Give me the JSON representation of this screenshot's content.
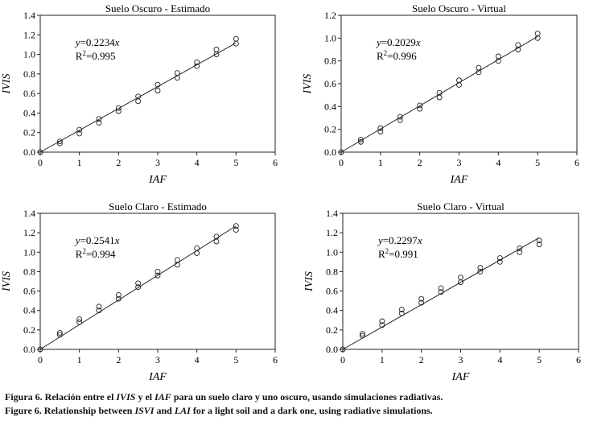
{
  "captions": {
    "spanish": {
      "prefix": "Figura 6. Relación entre el ",
      "term1": "IVIS",
      "mid": " y el ",
      "term2": "IAF",
      "suffix": " para un suelo claro y uno oscuro, usando simulaciones radiativas."
    },
    "english": {
      "prefix": "Figure 6.  Relationship between ",
      "term1": "ISVI",
      "mid": " and ",
      "term2": "LAI",
      "suffix": " for a light soil and a dark one, using radiative simulations."
    }
  },
  "chart_data": [
    {
      "type": "scatter",
      "title": "Suelo Oscuro - Estimado",
      "xlabel": "IAF",
      "ylabel": "IVIS",
      "xlim": [
        0,
        6
      ],
      "ylim": [
        0,
        1.4
      ],
      "xticks": [
        "0",
        "1",
        "2",
        "3",
        "4",
        "5",
        "6"
      ],
      "yticks": [
        "0.0",
        "0.2",
        "0.4",
        "0.6",
        "0.8",
        "1.0",
        "1.2",
        "1.4"
      ],
      "equation": "y=0.2234x",
      "r2": "=0.995",
      "slope": 0.2234,
      "fit_x": [
        0,
        5
      ],
      "points": [
        [
          0,
          0
        ],
        [
          0.5,
          0.09
        ],
        [
          0.5,
          0.11
        ],
        [
          1,
          0.19
        ],
        [
          1,
          0.23
        ],
        [
          1.5,
          0.3
        ],
        [
          1.5,
          0.34
        ],
        [
          2,
          0.42
        ],
        [
          2,
          0.45
        ],
        [
          2.5,
          0.52
        ],
        [
          2.5,
          0.57
        ],
        [
          3,
          0.63
        ],
        [
          3,
          0.69
        ],
        [
          3.5,
          0.76
        ],
        [
          3.5,
          0.81
        ],
        [
          4,
          0.88
        ],
        [
          4,
          0.92
        ],
        [
          4.5,
          1.0
        ],
        [
          4.5,
          1.05
        ],
        [
          5,
          1.11
        ],
        [
          5,
          1.16
        ]
      ]
    },
    {
      "type": "scatter",
      "title": "Suelo Oscuro - Virtual",
      "xlabel": "IAF",
      "ylabel": "IVIS",
      "xlim": [
        0,
        6
      ],
      "ylim": [
        0,
        1.2
      ],
      "xticks": [
        "0",
        "1",
        "2",
        "3",
        "4",
        "5",
        "6"
      ],
      "yticks": [
        "0.0",
        "0.2",
        "0.4",
        "0.6",
        "0.8",
        "1.0",
        "1.2"
      ],
      "equation": "y=0.2029x",
      "r2": "=0.996",
      "slope": 0.2029,
      "fit_x": [
        0,
        5
      ],
      "points": [
        [
          0,
          0
        ],
        [
          0.5,
          0.09
        ],
        [
          0.5,
          0.11
        ],
        [
          1,
          0.18
        ],
        [
          1,
          0.21
        ],
        [
          1.5,
          0.28
        ],
        [
          1.5,
          0.31
        ],
        [
          2,
          0.38
        ],
        [
          2,
          0.41
        ],
        [
          2.5,
          0.48
        ],
        [
          2.5,
          0.52
        ],
        [
          3,
          0.59
        ],
        [
          3,
          0.63
        ],
        [
          3.5,
          0.7
        ],
        [
          3.5,
          0.74
        ],
        [
          4,
          0.8
        ],
        [
          4,
          0.84
        ],
        [
          4.5,
          0.9
        ],
        [
          4.5,
          0.94
        ],
        [
          5,
          1.0
        ],
        [
          5,
          1.04
        ]
      ]
    },
    {
      "type": "scatter",
      "title": "Suelo Claro - Estimado",
      "xlabel": "IAF",
      "ylabel": "IVIS",
      "xlim": [
        0,
        6
      ],
      "ylim": [
        0,
        1.4
      ],
      "xticks": [
        "0",
        "1",
        "2",
        "3",
        "4",
        "5",
        "6"
      ],
      "yticks": [
        "0.0",
        "0.2",
        "0.4",
        "0.6",
        "0.8",
        "1.0",
        "1.2",
        "1.4"
      ],
      "equation": "y=0.2541x",
      "r2": "=0.994",
      "slope": 0.2541,
      "fit_x": [
        0,
        5
      ],
      "points": [
        [
          0,
          0
        ],
        [
          0.5,
          0.15
        ],
        [
          0.5,
          0.17
        ],
        [
          1,
          0.28
        ],
        [
          1,
          0.31
        ],
        [
          1.5,
          0.4
        ],
        [
          1.5,
          0.44
        ],
        [
          2,
          0.52
        ],
        [
          2,
          0.56
        ],
        [
          2.5,
          0.64
        ],
        [
          2.5,
          0.68
        ],
        [
          3,
          0.76
        ],
        [
          3,
          0.8
        ],
        [
          3.5,
          0.87
        ],
        [
          3.5,
          0.92
        ],
        [
          4,
          0.99
        ],
        [
          4,
          1.04
        ],
        [
          4.5,
          1.11
        ],
        [
          4.5,
          1.16
        ],
        [
          5,
          1.23
        ],
        [
          5,
          1.27
        ]
      ]
    },
    {
      "type": "scatter",
      "title": "Suelo Claro - Virtual",
      "xlabel": "IAF",
      "ylabel": "IVIS",
      "xlim": [
        0,
        6
      ],
      "ylim": [
        0,
        1.4
      ],
      "xticks": [
        "0",
        "1",
        "2",
        "3",
        "4",
        "5",
        "6"
      ],
      "yticks": [
        "0.0",
        "0.2",
        "0.4",
        "0.6",
        "0.8",
        "1.0",
        "1.2",
        "1.4"
      ],
      "equation": "y=0.2297x",
      "r2": "=0.991",
      "slope": 0.2297,
      "fit_x": [
        0,
        5
      ],
      "points": [
        [
          0,
          0
        ],
        [
          0.5,
          0.14
        ],
        [
          0.5,
          0.16
        ],
        [
          1,
          0.25
        ],
        [
          1,
          0.29
        ],
        [
          1.5,
          0.37
        ],
        [
          1.5,
          0.41
        ],
        [
          2,
          0.48
        ],
        [
          2,
          0.52
        ],
        [
          2.5,
          0.59
        ],
        [
          2.5,
          0.63
        ],
        [
          3,
          0.69
        ],
        [
          3,
          0.74
        ],
        [
          3.5,
          0.8
        ],
        [
          3.5,
          0.84
        ],
        [
          4,
          0.9
        ],
        [
          4,
          0.94
        ],
        [
          4.5,
          1.0
        ],
        [
          4.5,
          1.04
        ],
        [
          5,
          1.08
        ],
        [
          5,
          1.12
        ]
      ]
    }
  ]
}
